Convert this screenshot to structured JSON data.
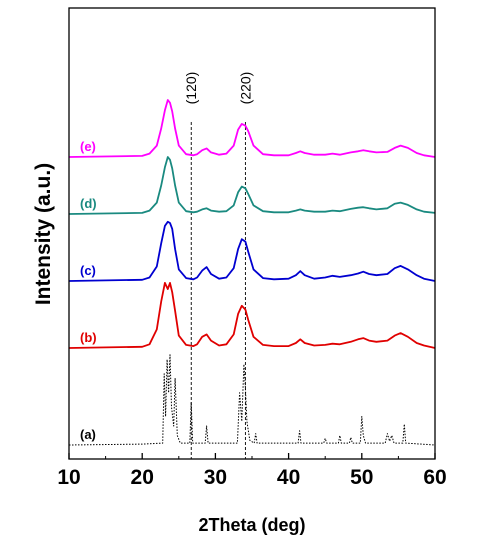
{
  "chart_data": {
    "type": "line",
    "xlabel": "2Theta (deg)",
    "ylabel": "Intensity (a.u.)",
    "xlim": [
      10,
      60
    ],
    "xticks": [
      10,
      20,
      30,
      40,
      50,
      60
    ],
    "ylabel_ticks": "none",
    "plot_style": "stacked_offset_patterns",
    "reference_lines": [
      {
        "x": 26.7,
        "label": "(120)",
        "style": "dashed"
      },
      {
        "x": 34.1,
        "label": "(220)",
        "style": "dashed"
      }
    ],
    "series": [
      {
        "name": "(e)",
        "color": "#ff00ff",
        "style": "solid",
        "baseline": 4.0,
        "x": [
          10,
          20,
          21,
          22,
          22.6,
          23.1,
          23.5,
          23.8,
          24.1,
          24.5,
          25,
          26,
          27,
          27.5,
          28.2,
          28.8,
          29.4,
          30.5,
          31.5,
          32.5,
          33.1,
          33.6,
          34.1,
          34.5,
          35.2,
          36.5,
          38,
          40,
          41,
          41.6,
          42.2,
          43.5,
          45,
          46,
          47,
          48.5,
          49.5,
          50.2,
          51,
          52,
          53.5,
          54.5,
          55.3,
          56.3,
          57.5,
          58.5,
          60
        ],
        "y": [
          0,
          0.02,
          0.06,
          0.2,
          0.5,
          0.82,
          1.0,
          0.95,
          0.8,
          0.5,
          0.2,
          0.05,
          0.03,
          0.05,
          0.12,
          0.15,
          0.08,
          0.04,
          0.06,
          0.2,
          0.48,
          0.58,
          0.55,
          0.45,
          0.2,
          0.05,
          0.03,
          0.03,
          0.07,
          0.1,
          0.07,
          0.04,
          0.04,
          0.06,
          0.04,
          0.08,
          0.1,
          0.12,
          0.1,
          0.08,
          0.09,
          0.16,
          0.2,
          0.16,
          0.07,
          0.03,
          0
        ]
      },
      {
        "name": "(d)",
        "color": "#1a8a80",
        "style": "solid",
        "baseline": 3.0,
        "x": [
          10,
          20,
          21,
          22,
          22.6,
          23.1,
          23.5,
          23.8,
          24.1,
          24.5,
          25,
          26,
          27,
          27.5,
          28.2,
          28.8,
          29.4,
          30.5,
          31.5,
          32.5,
          33.1,
          33.6,
          34.1,
          34.5,
          35.2,
          36.5,
          38,
          40,
          41,
          41.6,
          42.2,
          43.5,
          45,
          46,
          47,
          48.5,
          49.5,
          50.2,
          51,
          52,
          53.5,
          54.5,
          55.3,
          56.3,
          57.5,
          58.5,
          60
        ],
        "y": [
          0,
          0.02,
          0.06,
          0.2,
          0.5,
          0.82,
          1.0,
          0.95,
          0.8,
          0.5,
          0.2,
          0.05,
          0.03,
          0.04,
          0.08,
          0.1,
          0.06,
          0.04,
          0.05,
          0.15,
          0.38,
          0.48,
          0.45,
          0.35,
          0.15,
          0.05,
          0.03,
          0.03,
          0.06,
          0.08,
          0.06,
          0.04,
          0.04,
          0.06,
          0.05,
          0.09,
          0.11,
          0.12,
          0.1,
          0.08,
          0.1,
          0.18,
          0.2,
          0.16,
          0.08,
          0.04,
          0.02
        ]
      },
      {
        "name": "(c)",
        "color": "#0000d0",
        "style": "solid",
        "baseline": 2.0,
        "x": [
          10,
          20,
          21,
          22,
          22.6,
          23.1,
          23.5,
          23.8,
          24.1,
          24.5,
          25,
          26,
          27,
          27.5,
          28.2,
          28.8,
          29.4,
          30.5,
          31.5,
          32.5,
          33.1,
          33.6,
          34.1,
          34.5,
          35.2,
          36.5,
          38,
          40,
          41,
          41.6,
          42.2,
          43.5,
          45,
          46,
          47,
          48.5,
          49.5,
          50.2,
          51,
          52,
          53.5,
          54.5,
          55.3,
          56.3,
          57.5,
          58.5,
          60
        ],
        "y": [
          0,
          0.02,
          0.06,
          0.25,
          0.65,
          0.95,
          1.02,
          1.0,
          0.9,
          0.55,
          0.2,
          0.05,
          0.03,
          0.06,
          0.18,
          0.24,
          0.12,
          0.04,
          0.06,
          0.22,
          0.55,
          0.72,
          0.68,
          0.5,
          0.2,
          0.05,
          0.03,
          0.04,
          0.1,
          0.17,
          0.1,
          0.04,
          0.06,
          0.09,
          0.07,
          0.1,
          0.13,
          0.16,
          0.12,
          0.1,
          0.12,
          0.22,
          0.26,
          0.2,
          0.1,
          0.04,
          0
        ]
      },
      {
        "name": "(b)",
        "color": "#e00000",
        "style": "solid",
        "baseline": 1.0,
        "x": [
          10,
          20,
          21,
          22,
          22.6,
          23.1,
          23.5,
          23.8,
          24.1,
          24.5,
          25,
          26,
          27,
          27.5,
          28.2,
          28.8,
          29.4,
          30.5,
          31.5,
          32.5,
          33.1,
          33.6,
          34.1,
          34.5,
          35.2,
          36.5,
          38,
          40,
          41,
          41.6,
          42.2,
          43.5,
          45,
          46,
          47,
          48.5,
          49.5,
          50.2,
          51,
          52,
          53.5,
          54.5,
          55.3,
          56.3,
          57.5,
          58.5,
          60
        ],
        "y": [
          0,
          0.02,
          0.06,
          0.3,
          0.75,
          1.05,
          0.95,
          1.05,
          0.9,
          0.6,
          0.2,
          0.05,
          0.03,
          0.06,
          0.18,
          0.22,
          0.12,
          0.04,
          0.06,
          0.22,
          0.55,
          0.68,
          0.62,
          0.45,
          0.18,
          0.05,
          0.03,
          0.03,
          0.08,
          0.14,
          0.08,
          0.04,
          0.05,
          0.07,
          0.06,
          0.1,
          0.14,
          0.16,
          0.12,
          0.1,
          0.12,
          0.2,
          0.24,
          0.18,
          0.08,
          0.04,
          0
        ]
      },
      {
        "name": "(a)",
        "color": "#000000",
        "style": "dotted",
        "baseline": 0.0,
        "x": [
          10,
          20,
          22.8,
          23.0,
          23.2,
          23.4,
          23.6,
          23.8,
          24.0,
          24.3,
          24.5,
          24.8,
          25.2,
          26.5,
          26.7,
          26.9,
          28.6,
          28.8,
          29.0,
          33.0,
          33.3,
          33.6,
          33.9,
          34.1,
          34.3,
          34.7,
          35.3,
          35.5,
          35.7,
          41.3,
          41.5,
          41.7,
          44.8,
          45.0,
          45.2,
          46.8,
          47.0,
          47.2,
          48.3,
          48.5,
          48.7,
          49.8,
          50.0,
          50.2,
          50.5,
          53.2,
          53.5,
          53.8,
          54.1,
          54.4,
          55.6,
          55.8,
          56.0,
          60
        ],
        "y": [
          0,
          0.01,
          0.02,
          0.75,
          0.3,
          0.9,
          0.55,
          0.95,
          0.4,
          0.2,
          0.7,
          0.1,
          0.02,
          0.02,
          0.45,
          0.02,
          0.02,
          0.2,
          0.02,
          0.02,
          0.55,
          0.25,
          0.85,
          0.6,
          0.25,
          0.05,
          0.02,
          0.12,
          0.02,
          0.02,
          0.15,
          0.02,
          0.02,
          0.07,
          0.02,
          0.02,
          0.1,
          0.02,
          0.02,
          0.08,
          0.02,
          0.02,
          0.3,
          0.1,
          0.02,
          0.02,
          0.12,
          0.04,
          0.1,
          0.02,
          0.02,
          0.22,
          0.02,
          0
        ]
      }
    ]
  }
}
